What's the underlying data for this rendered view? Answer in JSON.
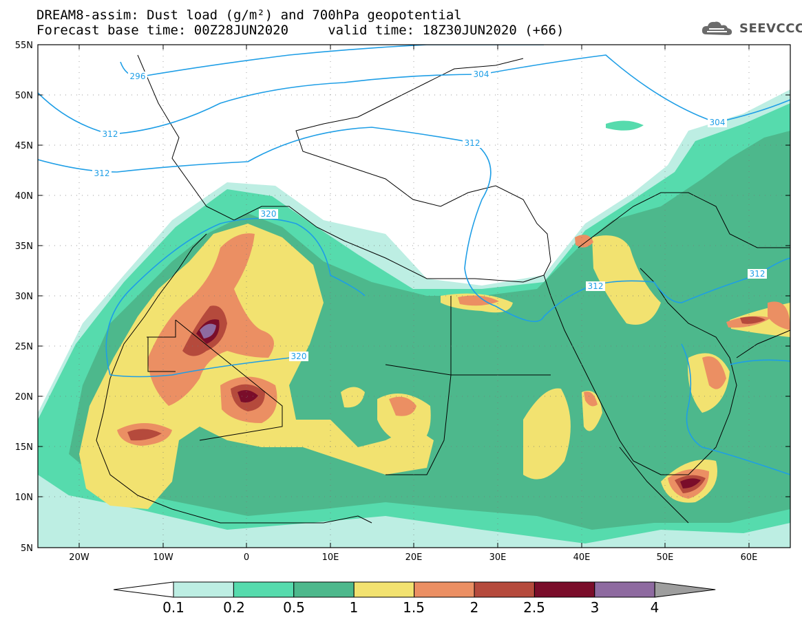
{
  "header": {
    "line1": "DREAM8-assim: Dust load (g/m²) and 700hPa geopotential",
    "line2": "Forecast base time: 00Z28JUN2020     valid time: 18Z30JUN2020 (+66)"
  },
  "logo": {
    "text": "SEEVCCC",
    "icon": "cloud-logo-icon"
  },
  "axes": {
    "lat_labels": [
      "55N",
      "50N",
      "45N",
      "40N",
      "35N",
      "30N",
      "25N",
      "20N",
      "15N",
      "10N",
      "5N"
    ],
    "lon_labels": [
      "20W",
      "10W",
      "0",
      "10E",
      "20E",
      "30E",
      "40E",
      "50E",
      "60E"
    ]
  },
  "contour_labels": [
    "296",
    "304",
    "312",
    "304",
    "312",
    "312",
    "320",
    "320",
    "312",
    "312"
  ],
  "colorbar": {
    "labels": [
      "0.1",
      "0.2",
      "0.5",
      "1",
      "1.5",
      "2",
      "2.5",
      "3",
      "4"
    ],
    "colors": [
      "#ffffff",
      "#bdeee3",
      "#56dbad",
      "#4db88c",
      "#f2e270",
      "#eb8f63",
      "#b54a3c",
      "#7a0d2a",
      "#8e6aa0",
      "#9e9e9e"
    ]
  },
  "colors": {
    "level_01": "#bdeee3",
    "level_02": "#56dbad",
    "level_05": "#4db88c",
    "level_1": "#f2e270",
    "level_15": "#eb8f63",
    "level_2": "#b54a3c",
    "level_25": "#7a0d2a",
    "level_3": "#8e6aa0",
    "contour": "#1e9ee6"
  }
}
